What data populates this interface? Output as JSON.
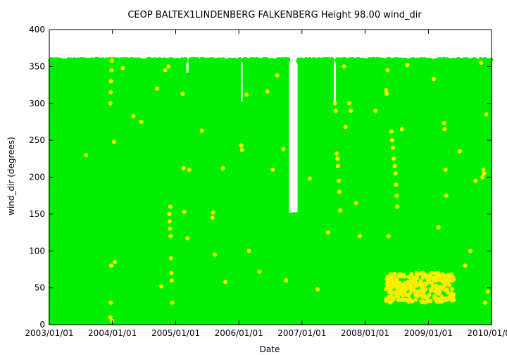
{
  "chart_data": {
    "type": "scatter",
    "title": "CEOP BALTEX1LINDENBERG FALKENBERG Height 98.00 wind_dir",
    "xlabel": "Date",
    "ylabel": "wind_dir (degrees)",
    "xlim": [
      "2003-01-01",
      "2010-01-01"
    ],
    "ylim": [
      0,
      400
    ],
    "x_ticks": [
      "2003/01/01",
      "2004/01/01",
      "2005/01/01",
      "2006/01/01",
      "2007/01/01",
      "2008/01/01",
      "2009/01/01",
      "2010/01/01"
    ],
    "y_ticks": [
      0,
      50,
      100,
      150,
      200,
      250,
      300,
      350,
      400
    ],
    "grid": false,
    "legend": "none",
    "colors": {
      "primary": "#00ee00",
      "flagged": "#ffee00"
    },
    "series": [
      {
        "color": "#00ee00",
        "description": "dense coverage 0–360 across whole period",
        "gaps": [
          {
            "from": "2006-10-15",
            "to": "2006-12-10",
            "y_max": 150
          },
          {
            "from": "2005-03-01",
            "to": "2005-03-20",
            "y_max": 340
          },
          {
            "from": "2006-01-10",
            "to": "2006-01-25",
            "y_max": 300
          },
          {
            "from": "2007-07-01",
            "to": "2007-07-20",
            "y_max": 300
          }
        ]
      },
      {
        "color": "#ffee00",
        "points": [
          [
            "2003-08-01",
            230
          ],
          [
            "2003-12-20",
            300
          ],
          [
            "2003-12-22",
            315
          ],
          [
            "2003-12-24",
            330
          ],
          [
            "2003-12-26",
            345
          ],
          [
            "2003-12-28",
            358
          ],
          [
            "2003-12-20",
            10
          ],
          [
            "2003-12-22",
            30
          ],
          [
            "2003-12-25",
            80
          ],
          [
            "2003-12-30",
            5
          ],
          [
            "2004-01-10",
            248
          ],
          [
            "2004-01-15",
            85
          ],
          [
            "2004-03-01",
            348
          ],
          [
            "2004-05-01",
            283
          ],
          [
            "2004-06-15",
            275
          ],
          [
            "2004-09-15",
            320
          ],
          [
            "2004-10-10",
            52
          ],
          [
            "2004-11-01",
            345
          ],
          [
            "2004-11-20",
            350
          ],
          [
            "2004-11-25",
            150
          ],
          [
            "2004-11-27",
            140
          ],
          [
            "2004-11-29",
            130
          ],
          [
            "2004-12-01",
            160
          ],
          [
            "2004-12-03",
            120
          ],
          [
            "2004-12-05",
            90
          ],
          [
            "2004-12-07",
            70
          ],
          [
            "2004-12-09",
            60
          ],
          [
            "2004-12-11",
            30
          ],
          [
            "2005-02-10",
            313
          ],
          [
            "2005-02-15",
            212
          ],
          [
            "2005-02-20",
            153
          ],
          [
            "2005-03-10",
            117
          ],
          [
            "2005-03-20",
            210
          ],
          [
            "2005-06-01",
            263
          ],
          [
            "2005-08-01",
            145
          ],
          [
            "2005-08-05",
            152
          ],
          [
            "2005-08-15",
            95
          ],
          [
            "2005-10-01",
            212
          ],
          [
            "2005-10-15",
            58
          ],
          [
            "2006-01-15",
            243
          ],
          [
            "2006-01-20",
            237
          ],
          [
            "2006-02-15",
            312
          ],
          [
            "2006-03-01",
            100
          ],
          [
            "2006-05-01",
            72
          ],
          [
            "2006-06-15",
            316
          ],
          [
            "2006-07-15",
            210
          ],
          [
            "2006-08-10",
            338
          ],
          [
            "2006-09-15",
            238
          ],
          [
            "2006-10-01",
            60
          ],
          [
            "2007-02-15",
            198
          ],
          [
            "2007-04-01",
            48
          ],
          [
            "2007-06-01",
            125
          ],
          [
            "2007-07-10",
            300
          ],
          [
            "2007-07-15",
            290
          ],
          [
            "2007-07-20",
            232
          ],
          [
            "2007-07-25",
            225
          ],
          [
            "2007-07-28",
            215
          ],
          [
            "2007-08-01",
            195
          ],
          [
            "2007-08-05",
            180
          ],
          [
            "2007-08-10",
            155
          ],
          [
            "2007-09-01",
            350
          ],
          [
            "2007-09-10",
            268
          ],
          [
            "2007-10-01",
            300
          ],
          [
            "2007-10-10",
            290
          ],
          [
            "2007-11-10",
            165
          ],
          [
            "2007-12-01",
            120
          ],
          [
            "2008-03-01",
            290
          ],
          [
            "2008-05-01",
            318
          ],
          [
            "2008-05-05",
            313
          ],
          [
            "2008-05-10",
            345
          ],
          [
            "2008-05-15",
            120
          ],
          [
            "2008-06-01",
            262
          ],
          [
            "2008-06-05",
            250
          ],
          [
            "2008-06-10",
            240
          ],
          [
            "2008-06-15",
            225
          ],
          [
            "2008-06-20",
            215
          ],
          [
            "2008-06-25",
            205
          ],
          [
            "2008-06-28",
            190
          ],
          [
            "2008-07-01",
            175
          ],
          [
            "2008-07-05",
            160
          ],
          [
            "2008-08-01",
            265
          ],
          [
            "2008-09-01",
            352
          ],
          [
            "2008-10-01",
            60
          ],
          [
            "2009-02-01",
            333
          ],
          [
            "2009-03-01",
            132
          ],
          [
            "2009-04-01",
            273
          ],
          [
            "2009-04-05",
            265
          ],
          [
            "2009-04-10",
            210
          ],
          [
            "2009-04-15",
            175
          ],
          [
            "2009-07-01",
            235
          ],
          [
            "2009-08-01",
            80
          ],
          [
            "2009-09-01",
            100
          ],
          [
            "2009-10-01",
            195
          ],
          [
            "2009-11-01",
            355
          ],
          [
            "2009-11-10",
            200
          ],
          [
            "2009-11-15",
            210
          ],
          [
            "2009-11-20",
            205
          ],
          [
            "2009-12-01",
            285
          ],
          [
            "2009-12-10",
            45
          ],
          [
            "2009-11-25",
            30
          ]
        ],
        "cluster": {
          "from": "2008-05-01",
          "to": "2009-06-01",
          "y_range": [
            30,
            70
          ]
        }
      }
    ]
  }
}
